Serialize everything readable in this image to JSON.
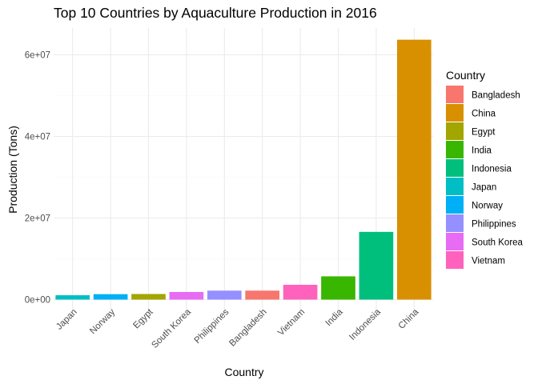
{
  "chart_data": {
    "type": "bar",
    "title": "Top 10 Countries by Aquaculture Production in 2016",
    "xlabel": "Country",
    "ylabel": "Production (Tons)",
    "categories": [
      "Japan",
      "Norway",
      "Egypt",
      "South Korea",
      "Philippines",
      "Bangladesh",
      "Vietnam",
      "India",
      "Indonesia",
      "China"
    ],
    "values": [
      1070000,
      1330000,
      1370000,
      1860000,
      2200000,
      2200000,
      3630000,
      5700000,
      16600000,
      63700000
    ],
    "ylim": [
      0,
      64000000
    ],
    "yticks": [
      0,
      20000000,
      40000000,
      60000000
    ],
    "ytick_labels": [
      "0e+00",
      "2e+07",
      "4e+07",
      "6e+07"
    ],
    "grid": true,
    "legend": {
      "title": "Country",
      "position": "right",
      "entries": [
        "Bangladesh",
        "China",
        "Egypt",
        "India",
        "Indonesia",
        "Japan",
        "Norway",
        "Philippines",
        "South Korea",
        "Vietnam"
      ]
    },
    "colors": {
      "Bangladesh": "#F8766D",
      "China": "#D89000",
      "Egypt": "#A3A500",
      "India": "#39B600",
      "Indonesia": "#00BF7D",
      "Japan": "#00BFC4",
      "Norway": "#00B0F6",
      "Philippines": "#9590FF",
      "South Korea": "#E76BF3",
      "Vietnam": "#FF62BC"
    }
  }
}
